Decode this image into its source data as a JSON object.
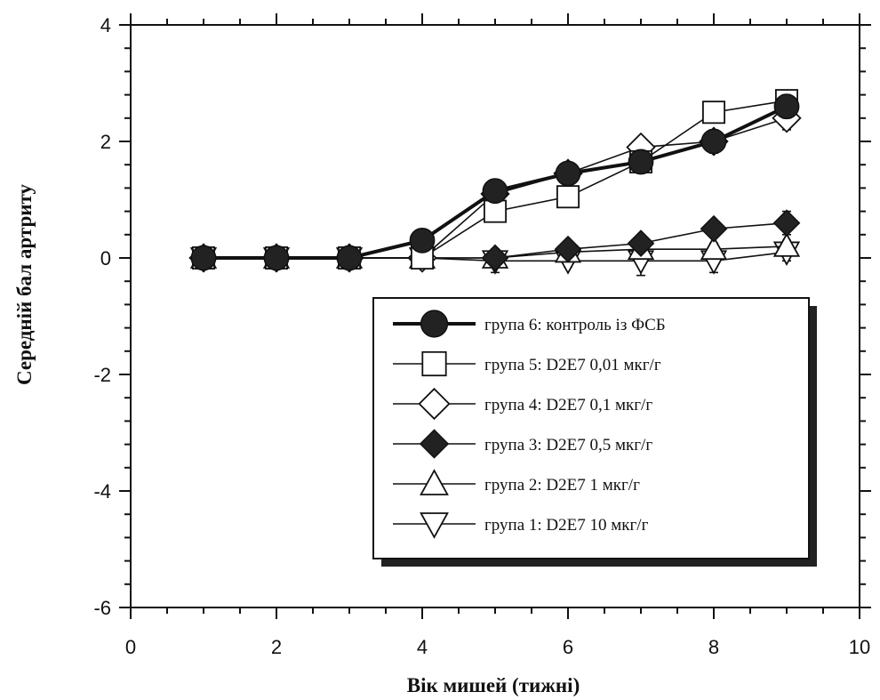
{
  "chart_data": {
    "type": "line",
    "xlabel": "Вік мишей (тижні)",
    "ylabel": "Середній бал артриту",
    "xlim": [
      0,
      10
    ],
    "ylim": [
      -6,
      4
    ],
    "xticks": [
      0,
      2,
      4,
      6,
      8,
      10
    ],
    "yticks": [
      -6,
      -4,
      -2,
      0,
      2,
      4
    ],
    "legend_position": "lower-right",
    "grid": false,
    "series": [
      {
        "name": "група 6: контроль із ФСБ",
        "marker": "filled-circle",
        "style": "bold",
        "x": [
          1,
          2,
          3,
          4,
          5,
          6,
          7,
          8,
          9
        ],
        "y": [
          0,
          0,
          0,
          0.3,
          1.15,
          1.45,
          1.65,
          2.0,
          2.6
        ],
        "err": [
          0,
          0,
          0,
          0,
          0,
          0,
          0,
          0.2,
          0.2
        ]
      },
      {
        "name": "група 5: D2E7 0,01 мкг/г",
        "marker": "open-square",
        "style": "thin",
        "x": [
          1,
          2,
          3,
          4,
          5,
          6,
          7,
          8,
          9
        ],
        "y": [
          0,
          0,
          0,
          0,
          0.8,
          1.05,
          1.65,
          2.5,
          2.7
        ],
        "err": [
          0,
          0,
          0,
          0,
          0.1,
          0.15,
          0.1,
          0.15,
          0.1
        ]
      },
      {
        "name": "група 4: D2E7 0,1 мкг/г",
        "marker": "open-diamond",
        "style": "thin",
        "x": [
          1,
          2,
          3,
          4,
          5,
          6,
          7,
          8,
          9
        ],
        "y": [
          0,
          0,
          0,
          0,
          1.1,
          1.45,
          1.9,
          2.0,
          2.4
        ],
        "err": [
          0,
          0,
          0,
          0,
          0,
          0,
          0.1,
          0.15,
          0.2
        ]
      },
      {
        "name": "група 3: D2E7 0,5 мкг/г",
        "marker": "filled-diamond",
        "style": "thin",
        "x": [
          1,
          2,
          3,
          4,
          5,
          6,
          7,
          8,
          9
        ],
        "y": [
          0,
          0,
          0,
          0,
          0,
          0.15,
          0.25,
          0.5,
          0.6
        ],
        "err": [
          0,
          0,
          0,
          0,
          0,
          0.1,
          0.1,
          0.1,
          0.2
        ]
      },
      {
        "name": "група 2: D2E7 1 мкг/г",
        "marker": "open-triangle-up",
        "style": "thin",
        "x": [
          1,
          2,
          3,
          4,
          5,
          6,
          7,
          8,
          9
        ],
        "y": [
          0,
          0,
          0,
          0,
          0,
          0.1,
          0.15,
          0.15,
          0.2
        ],
        "err": [
          0,
          0,
          0,
          0,
          0.15,
          0.1,
          0.1,
          0.1,
          0.1
        ]
      },
      {
        "name": "група 1: D2E7 10 мкг/г",
        "marker": "open-triangle-down",
        "style": "thin",
        "x": [
          1,
          2,
          3,
          4,
          5,
          6,
          7,
          8,
          9
        ],
        "y": [
          0,
          0,
          0,
          0,
          -0.05,
          -0.05,
          -0.05,
          -0.05,
          0.1
        ],
        "err": [
          0,
          0,
          0,
          0,
          0.2,
          0.1,
          0.25,
          0.2,
          0.15
        ]
      }
    ]
  }
}
